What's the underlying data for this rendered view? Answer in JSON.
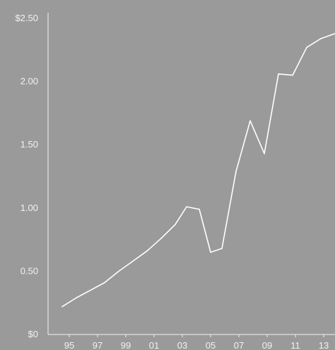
{
  "chart_data": {
    "type": "line",
    "title": "",
    "xlabel": "",
    "ylabel": "",
    "ylim": [
      0,
      2.5
    ],
    "y_ticks": [
      0,
      0.5,
      1.0,
      1.5,
      2.0,
      2.5
    ],
    "y_tick_labels": [
      "$0",
      "0.50",
      "1.00",
      "1.50",
      "2.00",
      "$2.50"
    ],
    "x_ticks": [
      1995,
      1997,
      1999,
      2001,
      2003,
      2005,
      2007,
      2009,
      2011,
      2013
    ],
    "x_tick_labels": [
      "95",
      "97",
      "99",
      "01",
      "03",
      "05",
      "07",
      "09",
      "11",
      "13"
    ],
    "xlim": [
      1993.5,
      2013.8
    ],
    "grid": "none",
    "series": [
      {
        "values": [
          {
            "x": 1994.5,
            "y": 0.22
          },
          {
            "x": 1995.5,
            "y": 0.29
          },
          {
            "x": 1996.5,
            "y": 0.35
          },
          {
            "x": 1997.5,
            "y": 0.41
          },
          {
            "x": 1998.5,
            "y": 0.5
          },
          {
            "x": 1999.5,
            "y": 0.58
          },
          {
            "x": 2000.5,
            "y": 0.66
          },
          {
            "x": 2001.5,
            "y": 0.76
          },
          {
            "x": 2002.5,
            "y": 0.87
          },
          {
            "x": 2003.3,
            "y": 1.01
          },
          {
            "x": 2004.2,
            "y": 0.99
          },
          {
            "x": 2005.0,
            "y": 0.65
          },
          {
            "x": 2005.8,
            "y": 0.68
          },
          {
            "x": 2006.8,
            "y": 1.29
          },
          {
            "x": 2007.8,
            "y": 1.69
          },
          {
            "x": 2008.8,
            "y": 1.43
          },
          {
            "x": 2009.8,
            "y": 2.06
          },
          {
            "x": 2010.8,
            "y": 2.05
          },
          {
            "x": 2011.8,
            "y": 2.27
          },
          {
            "x": 2012.8,
            "y": 2.34
          },
          {
            "x": 2013.8,
            "y": 2.38
          }
        ]
      }
    ]
  },
  "style": {
    "background": "#9a9a9a",
    "line_color": "#ffffff",
    "axis_color": "#f2f2f2"
  }
}
